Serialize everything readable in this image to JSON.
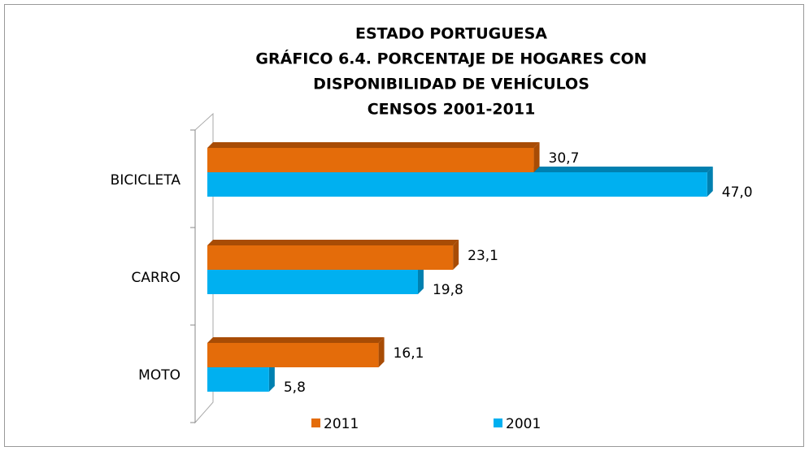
{
  "chart_data": {
    "type": "bar3d_horizontal",
    "title": [
      "ESTADO PORTUGUESA",
      "GRÁFICO 6.4. PORCENTAJE DE HOGARES CON",
      "DISPONIBILIDAD  DE VEHÍCULOS",
      "CENSOS 2001-2011"
    ],
    "categories": [
      "BICICLETA",
      "CARRO",
      "MOTO"
    ],
    "series": [
      {
        "name": "2011",
        "color": "#e46c0a",
        "side_color": "#a84c05",
        "values": [
          30.7,
          23.1,
          16.1
        ],
        "value_labels": [
          "30,7",
          "23,1",
          "16,1"
        ]
      },
      {
        "name": "2001",
        "color": "#00b0f0",
        "side_color": "#0080b0",
        "values": [
          47.0,
          19.8,
          5.8
        ],
        "value_labels": [
          "47,0",
          "19,8",
          "5,8"
        ]
      }
    ],
    "xlim": [
      0,
      50
    ]
  }
}
